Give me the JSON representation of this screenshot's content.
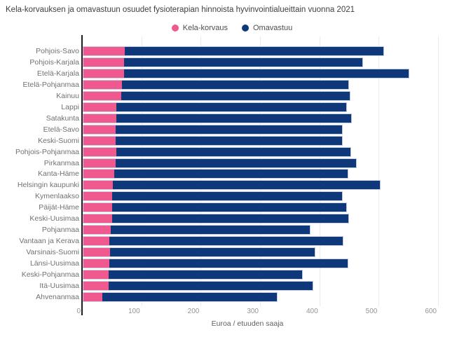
{
  "title": "Kela-korvauksen ja omavastuun osuudet fysioterapian hinnoista hyvinvointialueittain vuonna 2021",
  "legend": {
    "items": [
      {
        "label": "Kela-korvaus",
        "color": "#F0598F"
      },
      {
        "label": "Omavastuu",
        "color": "#0E387A"
      }
    ]
  },
  "axis": {
    "xlabel": "Euroa / etuuden saaja"
  },
  "colors": {
    "kela": "#F0598F",
    "omavastuu": "#0E387A",
    "gridline": "#ebebeb",
    "axis_line": "#1f1f1f",
    "title_text": "#3f3f3f",
    "label_text": "#717171",
    "tick_text": "#949494"
  },
  "chart_data": {
    "type": "bar",
    "orientation": "horizontal",
    "stacked": true,
    "title": "Kela-korvauksen ja omavastuun osuudet fysioterapian hinnoista hyvinvointialueittain vuonna 2021",
    "xlabel": "Euroa / etuuden saaja",
    "ylabel": "",
    "xlim": [
      0,
      600
    ],
    "xticks": [
      0,
      100,
      200,
      300,
      400,
      500,
      600
    ],
    "grid": true,
    "legend_position": "top",
    "categories": [
      "Pohjois-Savo",
      "Pohjois-Karjala",
      "Etelä-Karjala",
      "Etelä-Pohjanmaa",
      "Kainuu",
      "Lappi",
      "Satakunta",
      "Etelä-Savo",
      "Keski-Suomi",
      "Pohjois-Pohjanmaa",
      "Pirkanmaa",
      "Kanta-Häme",
      "Helsingin kaupunki",
      "Kymenlaakso",
      "Päijät-Häme",
      "Keski-Uusimaa",
      "Pohjanmaa",
      "Vantaan ja Kerava",
      "Varsinais-Suomi",
      "Länsi-Uusimaa",
      "Keski-Pohjanmaa",
      "Itä-Uusimaa",
      "Ahvenanmaa"
    ],
    "series": [
      {
        "name": "Kela-korvaus",
        "color": "#F0598F",
        "values": [
          70,
          69,
          68,
          65,
          64,
          56,
          55,
          54,
          54,
          55,
          54,
          52,
          50,
          49,
          48,
          48,
          46,
          44,
          45,
          44,
          43,
          43,
          32
        ]
      },
      {
        "name": "Omavastuu",
        "color": "#0E387A",
        "values": [
          435,
          401,
          480,
          381,
          385,
          387,
          396,
          382,
          382,
          395,
          406,
          393,
          450,
          387,
          395,
          398,
          335,
          393,
          345,
          401,
          326,
          343,
          294
        ]
      }
    ]
  }
}
